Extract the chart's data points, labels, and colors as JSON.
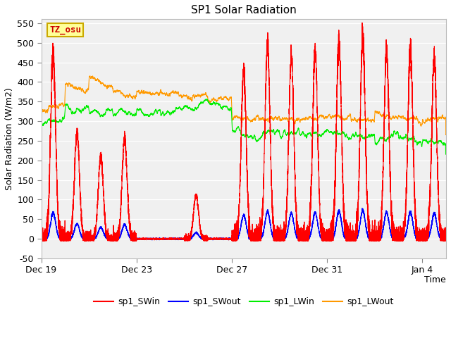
{
  "title": "SP1 Solar Radiation",
  "xlabel": "Time",
  "ylabel": "Solar Radiation (W/m2)",
  "ylim": [
    -50,
    560
  ],
  "yticks": [
    -50,
    0,
    50,
    100,
    150,
    200,
    250,
    300,
    350,
    400,
    450,
    500,
    550
  ],
  "plot_bg": "#f0f0f0",
  "colors": {
    "SWin": "#ff0000",
    "SWout": "#0000ff",
    "LWin": "#00ee00",
    "LWout": "#ff9900"
  },
  "legend_labels": [
    "sp1_SWin",
    "sp1_SWout",
    "sp1_LWin",
    "sp1_LWout"
  ],
  "tz_label": "TZ_osu",
  "tz_box_color": "#ffff99",
  "tz_text_color": "#cc0000",
  "tz_edge_color": "#ccaa00",
  "day_labels": [
    "Dec 19",
    "Dec 23",
    "Dec 27",
    "Dec 31",
    "Jan 4"
  ],
  "day_positions": [
    0,
    4,
    8,
    12,
    16
  ],
  "num_points": 8160,
  "total_days": 17
}
